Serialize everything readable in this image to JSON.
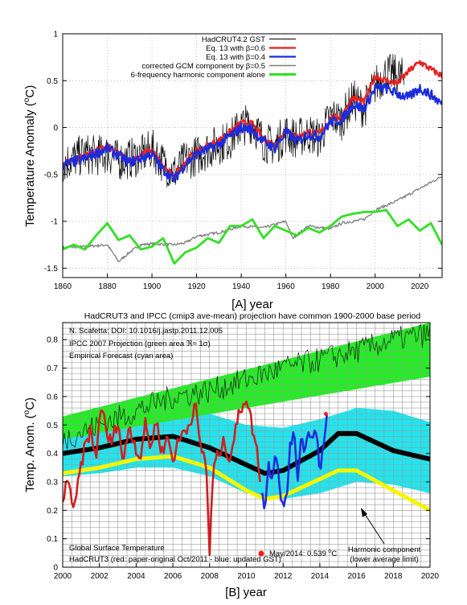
{
  "chart_data": [
    {
      "type": "line",
      "panel_label": "[A]   year",
      "ylabel_text": "Temperature Anomaly (",
      "ylabel_sup": "o",
      "ylabel_end": "C)",
      "xlim": [
        1860,
        2030
      ],
      "ylim": [
        -1.6,
        1.0
      ],
      "x_ticks": [
        1860,
        1880,
        1900,
        1920,
        1940,
        1960,
        1980,
        2000,
        2020
      ],
      "y_ticks": [
        -1.5,
        -1,
        -0.5,
        0,
        0.5,
        1
      ],
      "y_tick_labels": [
        "-1.5",
        "-1",
        "-0.5",
        "0",
        "0.5",
        "1"
      ],
      "grid": "dotted",
      "legend_position": "top-right",
      "legend": [
        {
          "label": "HadCRUT4.2 GST",
          "color": "#000000"
        },
        {
          "label": "Eq. 13 with β=0.6",
          "color": "#e8201c"
        },
        {
          "label": "Eq. 13 with β=0.4",
          "color": "#1c2cdc"
        },
        {
          "label": "corrected GCM component by β=0.5",
          "color": "#808080"
        },
        {
          "label": "6-frequency harmonic component alone",
          "color": "#33e024"
        }
      ],
      "series": [
        {
          "name": "HadCRUT4.2 GST",
          "color": "#000000",
          "x": [
            1860,
            1865,
            1870,
            1875,
            1880,
            1885,
            1890,
            1895,
            1900,
            1905,
            1910,
            1915,
            1920,
            1925,
            1930,
            1935,
            1940,
            1945,
            1950,
            1955,
            1960,
            1965,
            1970,
            1975,
            1980,
            1985,
            1990,
            1995,
            2000,
            2005,
            2010,
            2013
          ],
          "y": [
            -0.38,
            -0.33,
            -0.28,
            -0.3,
            -0.28,
            -0.35,
            -0.33,
            -0.3,
            -0.23,
            -0.38,
            -0.48,
            -0.35,
            -0.3,
            -0.23,
            -0.18,
            -0.13,
            0.02,
            0.05,
            -0.15,
            -0.2,
            -0.06,
            -0.12,
            -0.06,
            -0.12,
            0.12,
            0.08,
            0.3,
            0.2,
            0.45,
            0.58,
            0.56,
            0.52
          ]
        },
        {
          "name": "Eq. 13 with β=0.6",
          "color": "#e8201c",
          "x": [
            1860,
            1870,
            1880,
            1890,
            1900,
            1905,
            1910,
            1915,
            1920,
            1930,
            1940,
            1945,
            1950,
            1955,
            1960,
            1965,
            1970,
            1975,
            1980,
            1985,
            1990,
            1995,
            2000,
            2005,
            2010,
            2015,
            2020,
            2025,
            2030
          ],
          "y": [
            -0.38,
            -0.3,
            -0.2,
            -0.35,
            -0.24,
            -0.42,
            -0.52,
            -0.36,
            -0.25,
            -0.14,
            0.05,
            0.04,
            -0.12,
            -0.19,
            -0.02,
            -0.11,
            -0.04,
            -0.07,
            0.1,
            0.12,
            0.32,
            0.27,
            0.55,
            0.5,
            0.47,
            0.6,
            0.7,
            0.62,
            0.55
          ]
        },
        {
          "name": "Eq. 13 with β=0.4",
          "color": "#1c2cdc",
          "x": [
            1860,
            1870,
            1880,
            1890,
            1900,
            1905,
            1910,
            1915,
            1920,
            1930,
            1940,
            1945,
            1950,
            1955,
            1960,
            1965,
            1970,
            1975,
            1980,
            1985,
            1990,
            1995,
            2000,
            2005,
            2010,
            2015,
            2020,
            2025,
            2030
          ],
          "y": [
            -0.4,
            -0.33,
            -0.22,
            -0.37,
            -0.28,
            -0.45,
            -0.55,
            -0.39,
            -0.28,
            -0.18,
            0.0,
            -0.02,
            -0.15,
            -0.22,
            -0.05,
            -0.15,
            -0.07,
            -0.1,
            0.06,
            0.08,
            0.25,
            0.2,
            0.42,
            0.42,
            0.36,
            0.32,
            0.42,
            0.35,
            0.25
          ]
        },
        {
          "name": "corrected GCM component by β=0.5",
          "color": "#808080",
          "x": [
            1860,
            1870,
            1880,
            1885,
            1890,
            1895,
            1900,
            1910,
            1915,
            1920,
            1930,
            1940,
            1950,
            1960,
            1963,
            1970,
            1980,
            1985,
            1990,
            1995,
            2000,
            2010,
            2020,
            2030
          ],
          "y": [
            -1.28,
            -1.27,
            -1.25,
            -1.43,
            -1.33,
            -1.25,
            -1.24,
            -1.25,
            -1.23,
            -1.16,
            -1.12,
            -1.05,
            -1.07,
            -1.0,
            -1.18,
            -1.05,
            -1.08,
            -1.02,
            -1.0,
            -0.98,
            -0.88,
            -0.78,
            -0.65,
            -0.52
          ]
        },
        {
          "name": "6-frequency harmonic component alone",
          "color": "#33e024",
          "x": [
            1860,
            1865,
            1870,
            1875,
            1880,
            1885,
            1890,
            1895,
            1900,
            1905,
            1910,
            1915,
            1920,
            1925,
            1930,
            1935,
            1940,
            1945,
            1950,
            1955,
            1960,
            1965,
            1970,
            1975,
            1980,
            1985,
            1990,
            1995,
            2000,
            2005,
            2010,
            2015,
            2020,
            2025,
            2030
          ],
          "y": [
            -1.3,
            -1.25,
            -1.3,
            -1.15,
            -1.02,
            -1.2,
            -1.15,
            -1.3,
            -1.27,
            -1.18,
            -1.45,
            -1.33,
            -1.28,
            -1.18,
            -1.23,
            -1.05,
            -1.05,
            -0.98,
            -1.18,
            -1.05,
            -1.1,
            -1.15,
            -1.07,
            -1.12,
            -1.05,
            -0.95,
            -0.92,
            -0.9,
            -0.9,
            -0.88,
            -1.05,
            -0.98,
            -1.1,
            -1.02,
            -1.25
          ]
        }
      ]
    },
    {
      "type": "line",
      "title": "HadCRUT3 and IPCC (cmip3 ave-mean) projection have common 1900-2000 base period",
      "panel_label": "[B]   year",
      "ylabel_text": "Temp. Anom. (",
      "ylabel_sup": "o",
      "ylabel_end": "C)",
      "xlim": [
        2000,
        2020
      ],
      "ylim": [
        0,
        0.86
      ],
      "x_ticks": [
        2000,
        2002,
        2004,
        2006,
        2008,
        2010,
        2012,
        2014,
        2016,
        2018,
        2020
      ],
      "y_ticks": [
        0,
        0.1,
        0.2,
        0.3,
        0.4,
        0.5,
        0.6,
        0.7,
        0.8
      ],
      "grid": "solid fine",
      "annotations": {
        "doi": "N. Scafetta: DOI: 10.1016/j.jastp.2011.12.005",
        "ipcc_prefix": "IPCC 2007 Projection (green area ",
        "ipcc_symbol": "ℜ≈ 1σ",
        "ipcc_suffix": ")",
        "empirical": "Empirical Forecast (cyan area)",
        "gst": "Global Surface Temperature",
        "hadcrut": "HadCRUT3 (red: paper-original Oct/2011  -  blue: updated GST)",
        "may_label": "May/2014: 0.539",
        "may_unit_sup": "o",
        "may_unit_end": "C",
        "harmonic_1": "Harmonic component",
        "harmonic_2": "(lower average limit)"
      },
      "highlight_point": {
        "x": 2014.33,
        "y": 0.539,
        "color": "#e8201c"
      },
      "bands": [
        {
          "name": "IPCC 2007 Projection",
          "color": "#22ee22",
          "x": [
            2000,
            2020
          ],
          "upper": [
            0.53,
            0.86
          ],
          "lower": [
            0.45,
            0.67
          ]
        },
        {
          "name": "Empirical Forecast",
          "color": "#22e4ee",
          "x": [
            2000,
            2002,
            2004,
            2006,
            2008,
            2010,
            2012,
            2014,
            2016,
            2018,
            2020
          ],
          "upper": [
            0.48,
            0.52,
            0.55,
            0.56,
            0.54,
            0.5,
            0.49,
            0.52,
            0.56,
            0.55,
            0.51
          ],
          "lower": [
            0.32,
            0.33,
            0.35,
            0.35,
            0.32,
            0.26,
            0.24,
            0.26,
            0.3,
            0.29,
            0.26
          ]
        }
      ],
      "series": [
        {
          "name": "IPCC projection mean",
          "color": "#000000",
          "x": [
            2000,
            2002,
            2004,
            2006,
            2008,
            2010,
            2012,
            2014,
            2016,
            2018,
            2020
          ],
          "y": [
            0.45,
            0.5,
            0.55,
            0.6,
            0.62,
            0.66,
            0.7,
            0.73,
            0.76,
            0.8,
            0.82
          ]
        },
        {
          "name": "Empirical mean",
          "color": "#000000",
          "x": [
            2000,
            2002,
            2004,
            2006,
            2008,
            2010,
            2011,
            2012,
            2014,
            2015,
            2016,
            2018,
            2020
          ],
          "y": [
            0.4,
            0.42,
            0.45,
            0.46,
            0.42,
            0.36,
            0.33,
            0.34,
            0.41,
            0.47,
            0.47,
            0.41,
            0.38
          ]
        },
        {
          "name": "Harmonic lower limit",
          "color": "#f5f500",
          "x": [
            2000,
            2002,
            2004,
            2006,
            2008,
            2010,
            2011,
            2012,
            2014,
            2015,
            2016,
            2018,
            2020
          ],
          "y": [
            0.33,
            0.35,
            0.38,
            0.39,
            0.35,
            0.27,
            0.24,
            0.25,
            0.31,
            0.34,
            0.34,
            0.27,
            0.2
          ]
        },
        {
          "name": "HadCRUT3 paper-original",
          "color": "#cc2020",
          "x": [
            2000,
            2000.3,
            2000.6,
            2000.9,
            2001.2,
            2001.5,
            2001.8,
            2002.1,
            2002.4,
            2002.7,
            2003.0,
            2003.3,
            2003.6,
            2003.9,
            2004.2,
            2004.5,
            2004.8,
            2005.1,
            2005.4,
            2005.7,
            2006.0,
            2006.3,
            2006.6,
            2006.9,
            2007.2,
            2007.5,
            2007.8,
            2008.0,
            2008.2,
            2008.5,
            2008.8,
            2009.1,
            2009.4,
            2009.7,
            2010.0,
            2010.3,
            2010.6,
            2010.8
          ],
          "y": [
            0.22,
            0.33,
            0.18,
            0.32,
            0.42,
            0.48,
            0.38,
            0.58,
            0.46,
            0.44,
            0.52,
            0.36,
            0.5,
            0.44,
            0.38,
            0.5,
            0.42,
            0.52,
            0.4,
            0.46,
            0.38,
            0.44,
            0.48,
            0.5,
            0.58,
            0.42,
            0.38,
            0.05,
            0.35,
            0.4,
            0.44,
            0.38,
            0.48,
            0.56,
            0.6,
            0.5,
            0.4,
            0.28
          ]
        },
        {
          "name": "HadCRUT3 updated",
          "color": "#1c2cdc",
          "x": [
            2010.8,
            2011.0,
            2011.2,
            2011.4,
            2011.6,
            2011.8,
            2012.0,
            2012.2,
            2012.4,
            2012.6,
            2012.8,
            2013.0,
            2013.2,
            2013.4,
            2013.6,
            2013.8,
            2014.0,
            2014.2,
            2014.4
          ],
          "y": [
            0.28,
            0.2,
            0.36,
            0.32,
            0.42,
            0.3,
            0.2,
            0.24,
            0.46,
            0.45,
            0.32,
            0.48,
            0.4,
            0.5,
            0.44,
            0.49,
            0.35,
            0.42,
            0.54
          ]
        }
      ]
    }
  ]
}
